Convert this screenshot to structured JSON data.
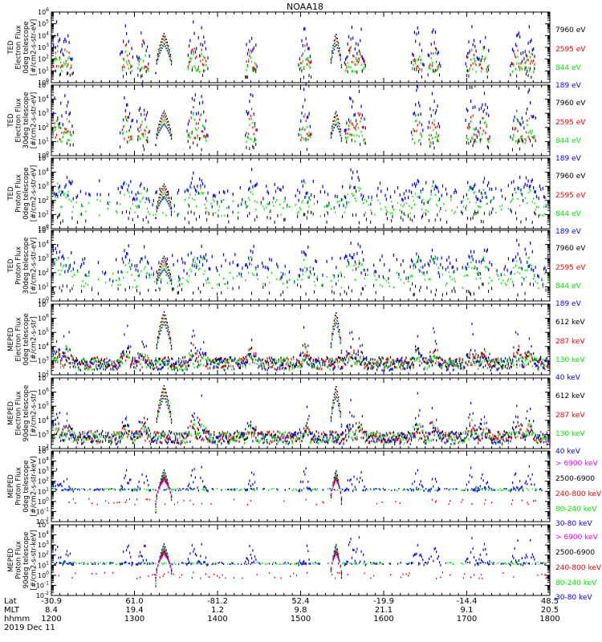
{
  "title": "NOAA18",
  "date_label": "2019 Dec 11",
  "axis_row_labels": [
    "Lat",
    "MLT",
    "hhmm"
  ],
  "colors": {
    "black": "#000000",
    "red": "#ff0000",
    "green": "#00ee00",
    "blue": "#0000ff",
    "magenta": "#ff00ff"
  },
  "chart_data": [
    {
      "type": "scatter",
      "ylabel": [
        "TED",
        "Electron Flux",
        "0deg telescope",
        "[#/cm2-s-str-eV]"
      ],
      "log_scale": true,
      "ylim_exp": [
        0,
        6
      ],
      "legend": [
        {
          "label": "7960 eV",
          "color": "black"
        },
        {
          "label": "2595 eV",
          "color": "red"
        },
        {
          "label": "844 eV",
          "color": "green"
        },
        {
          "label": "189 eV",
          "color": "blue"
        }
      ]
    },
    {
      "type": "scatter",
      "ylabel": [
        "TED",
        "Electron Flux",
        "30deg telescope",
        "[#/cm2-s-str-eV]"
      ],
      "log_scale": true,
      "ylim_exp": [
        0,
        5
      ],
      "legend": [
        {
          "label": "7960 eV",
          "color": "black"
        },
        {
          "label": "2595 eV",
          "color": "red"
        },
        {
          "label": "844 eV",
          "color": "green"
        },
        {
          "label": "189 eV",
          "color": "blue"
        }
      ]
    },
    {
      "type": "scatter",
      "ylabel": [
        "TED",
        "Proton Flux",
        "0deg telescope",
        "[#/cm2-s-str-eV]"
      ],
      "log_scale": true,
      "ylim_exp": [
        0,
        5
      ],
      "legend": [
        {
          "label": "7960 eV",
          "color": "black"
        },
        {
          "label": "2595 eV",
          "color": "red"
        },
        {
          "label": "844 eV",
          "color": "green"
        },
        {
          "label": "189 eV",
          "color": "blue"
        }
      ]
    },
    {
      "type": "scatter",
      "ylabel": [
        "TED",
        "Proton Flux",
        "30deg telescope",
        "[#/cm2-s-str-eV]"
      ],
      "log_scale": true,
      "ylim_exp": [
        0,
        5
      ],
      "legend": [
        {
          "label": "7960 eV",
          "color": "black"
        },
        {
          "label": "2595 eV",
          "color": "red"
        },
        {
          "label": "844 eV",
          "color": "green"
        },
        {
          "label": "189 eV",
          "color": "blue"
        }
      ]
    },
    {
      "type": "scatter",
      "ylabel": [
        "MEPED",
        "Electron Flux",
        "0deg telescope",
        "[#/cm2-s-str]"
      ],
      "log_scale": true,
      "ylim_exp": [
        2,
        7
      ],
      "legend": [
        {
          "label": "612 keV",
          "color": "black"
        },
        {
          "label": "287 keV",
          "color": "red"
        },
        {
          "label": "130 keV",
          "color": "green"
        },
        {
          "label": "40 keV",
          "color": "blue"
        }
      ]
    },
    {
      "type": "scatter",
      "ylabel": [
        "MEPED",
        "Electron Flux",
        "90deg telescope",
        "[#/cm2-s-str]"
      ],
      "log_scale": true,
      "ylim_exp": [
        2,
        7
      ],
      "legend": [
        {
          "label": "612 keV",
          "color": "black"
        },
        {
          "label": "287 keV",
          "color": "red"
        },
        {
          "label": "130 keV",
          "color": "green"
        },
        {
          "label": "40 keV",
          "color": "blue"
        }
      ]
    },
    {
      "type": "scatter",
      "ylabel": [
        "MEPED",
        "Proton Flux",
        "0deg telescope",
        "[#/cm2-s-str-keV]"
      ],
      "log_scale": true,
      "ylim_exp": [
        -2,
        5
      ],
      "legend": [
        {
          "label": "> 6900 keV",
          "color": "magenta"
        },
        {
          "label": "2500-6900",
          "color": "black"
        },
        {
          "label": "240-800 keV",
          "color": "red"
        },
        {
          "label": "80-240 keV",
          "color": "green"
        },
        {
          "label": "30-80 keV",
          "color": "blue"
        }
      ]
    },
    {
      "type": "scatter",
      "ylabel": [
        "MEPED",
        "Proton Flux",
        "90deg telescope",
        "[#/cm2-s-str-keV]"
      ],
      "log_scale": true,
      "ylim_exp": [
        -2,
        5
      ],
      "legend": [
        {
          "label": "> 6900 keV",
          "color": "magenta"
        },
        {
          "label": "2500-6900",
          "color": "black"
        },
        {
          "label": "240-800 keV",
          "color": "red"
        },
        {
          "label": "80-240 keV",
          "color": "green"
        },
        {
          "label": "30-80 keV",
          "color": "blue"
        }
      ]
    }
  ],
  "x_axis": {
    "ticks": [
      {
        "lat": "-30.9",
        "mlt": "8.4",
        "time": "1200"
      },
      {
        "lat": "61.0",
        "mlt": "19.4",
        "time": "1300"
      },
      {
        "lat": "-81.2",
        "mlt": "1.2",
        "time": "1400"
      },
      {
        "lat": "52.4",
        "mlt": "9.8",
        "time": "1500"
      },
      {
        "lat": "-19.9",
        "mlt": "21.1",
        "time": "1600"
      },
      {
        "lat": "-14.4",
        "mlt": "9.1",
        "time": "1700"
      },
      {
        "lat": "48.5",
        "mlt": "20.5",
        "time": "1800"
      }
    ]
  }
}
